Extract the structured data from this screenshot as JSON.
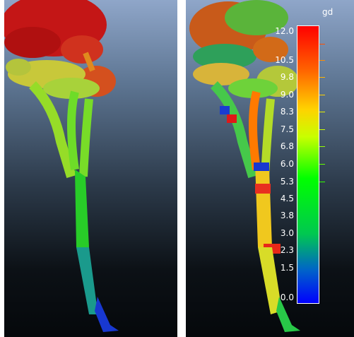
{
  "panels": [
    {
      "id": "left",
      "description_color_mode": "scalar-height"
    },
    {
      "id": "right",
      "description_color_mode": "scalar-gd"
    }
  ],
  "scale": {
    "title": "gd",
    "range": [
      0.0,
      12.0
    ],
    "labels": [
      "12.0",
      "10.5",
      "9.8",
      "9.0",
      "8.3",
      "7.5",
      "6.8",
      "6.0",
      "5.3",
      "4.5",
      "3.8",
      "3.0",
      "2.3",
      "1.5",
      "0.0"
    ],
    "colors": {
      "high": "#ff0000",
      "mid": "#00ff00",
      "low": "#0000ff"
    }
  }
}
